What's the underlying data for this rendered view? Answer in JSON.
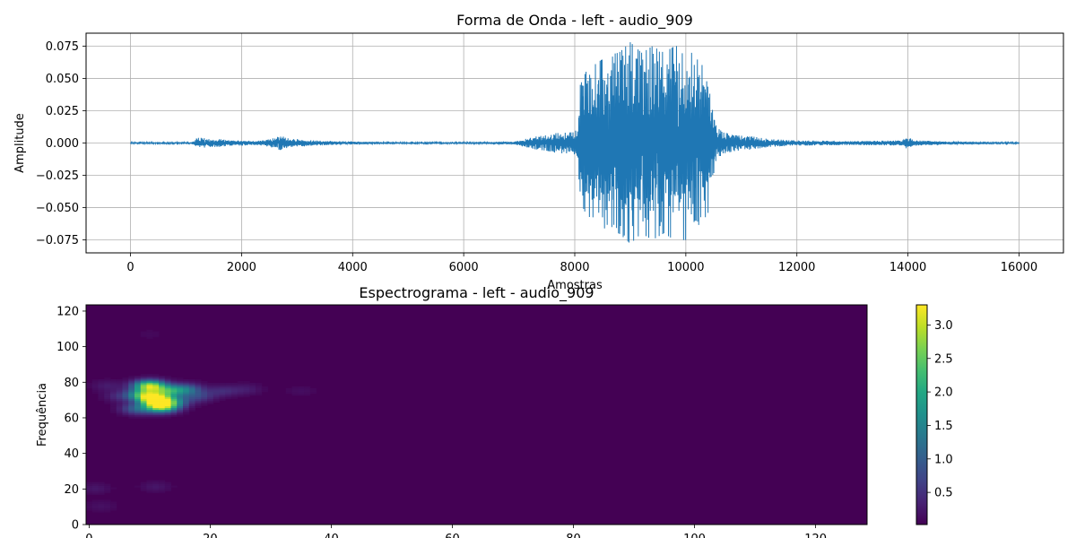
{
  "chart_data": [
    {
      "type": "line",
      "title": "Forma de Onda - left - audio_909",
      "xlabel": "Amostras",
      "ylabel": "Amplitude",
      "xlim": [
        -800,
        16800
      ],
      "ylim": [
        -0.085,
        0.085
      ],
      "grid": true,
      "x_ticks": [
        0,
        2000,
        4000,
        6000,
        8000,
        10000,
        12000,
        14000,
        16000
      ],
      "y_ticks": [
        -0.075,
        -0.05,
        -0.025,
        0.0,
        0.025,
        0.05,
        0.075
      ],
      "x_tick_labels": [
        "0",
        "2000",
        "4000",
        "6000",
        "8000",
        "10000",
        "12000",
        "14000",
        "16000"
      ],
      "y_tick_labels": [
        "−0.075",
        "−0.050",
        "−0.025",
        "0.000",
        "0.025",
        "0.050",
        "0.075"
      ],
      "line_color": "#1f77b4",
      "series": [
        {
          "envelope_x": [
            0,
            1100,
            1200,
            1300,
            1400,
            1600,
            1800,
            2000,
            2200,
            2400,
            2600,
            2700,
            2800,
            2900,
            3000,
            3300,
            3600,
            4000,
            5000,
            6000,
            6900,
            7100,
            7300,
            7500,
            7700,
            7900,
            8050,
            8100,
            8200,
            8400,
            8600,
            8800,
            9000,
            9200,
            9400,
            9600,
            9800,
            10000,
            10200,
            10400,
            10450,
            10550,
            10700,
            10900,
            11200,
            11500,
            12000,
            13000,
            13900,
            14000,
            14100,
            15000,
            16000
          ],
          "envelope_amp": [
            0.0005,
            0.0005,
            0.004,
            0.004,
            0.003,
            0.003,
            0.002,
            0.002,
            0.0015,
            0.002,
            0.004,
            0.006,
            0.004,
            0.003,
            0.003,
            0.002,
            0.0015,
            0.001,
            0.0005,
            0.0005,
            0.001,
            0.003,
            0.005,
            0.006,
            0.008,
            0.008,
            0.01,
            0.045,
            0.055,
            0.062,
            0.068,
            0.07,
            0.078,
            0.07,
            0.075,
            0.07,
            0.075,
            0.075,
            0.065,
            0.055,
            0.04,
            0.012,
            0.008,
            0.006,
            0.005,
            0.003,
            0.002,
            0.0015,
            0.002,
            0.005,
            0.002,
            0.001,
            0.0005
          ]
        }
      ]
    },
    {
      "type": "heatmap",
      "title": "Espectrograma - left - audio_909",
      "xlabel": "",
      "ylabel": "Frequência",
      "xlim": [
        -0.5,
        128.5
      ],
      "ylim": [
        0,
        123.5
      ],
      "x_ticks": [
        0,
        20,
        40,
        60,
        80,
        100,
        120
      ],
      "y_ticks": [
        0,
        20,
        40,
        60,
        80,
        100,
        120
      ],
      "x_tick_labels": [
        "0",
        "20",
        "40",
        "60",
        "80",
        "100",
        "120"
      ],
      "y_tick_labels": [
        "0",
        "20",
        "40",
        "60",
        "80",
        "100",
        "120"
      ],
      "colormap": "viridis",
      "value_range": [
        0.02,
        3.3
      ],
      "background_value": 0.02,
      "colorbar_ticks": [
        0.5,
        1.0,
        1.5,
        2.0,
        2.5,
        3.0
      ],
      "colorbar_tick_labels": [
        "0.5",
        "1.0",
        "1.5",
        "2.0",
        "2.5",
        "3.0"
      ],
      "hotspots": [
        {
          "x": 11,
          "y": 70,
          "value": 3.3
        },
        {
          "x": 10,
          "y": 78,
          "value": 2.8
        },
        {
          "x": 12,
          "y": 66,
          "value": 2.6
        },
        {
          "x": 9,
          "y": 73,
          "value": 2.0
        },
        {
          "x": 13,
          "y": 75,
          "value": 1.6
        },
        {
          "x": 16,
          "y": 76,
          "value": 1.1
        },
        {
          "x": 8,
          "y": 65,
          "value": 1.0
        },
        {
          "x": 14,
          "y": 69,
          "value": 1.1
        },
        {
          "x": 18,
          "y": 72,
          "value": 0.6
        },
        {
          "x": 22,
          "y": 75,
          "value": 0.4
        },
        {
          "x": 26,
          "y": 76,
          "value": 0.25
        },
        {
          "x": 5,
          "y": 72,
          "value": 0.35
        },
        {
          "x": 3,
          "y": 78,
          "value": 0.25
        },
        {
          "x": 1,
          "y": 20,
          "value": 0.2
        },
        {
          "x": 2,
          "y": 10,
          "value": 0.15
        },
        {
          "x": 11,
          "y": 21,
          "value": 0.2
        },
        {
          "x": 35,
          "y": 75,
          "value": 0.12
        },
        {
          "x": 10,
          "y": 107,
          "value": 0.08
        }
      ]
    }
  ]
}
